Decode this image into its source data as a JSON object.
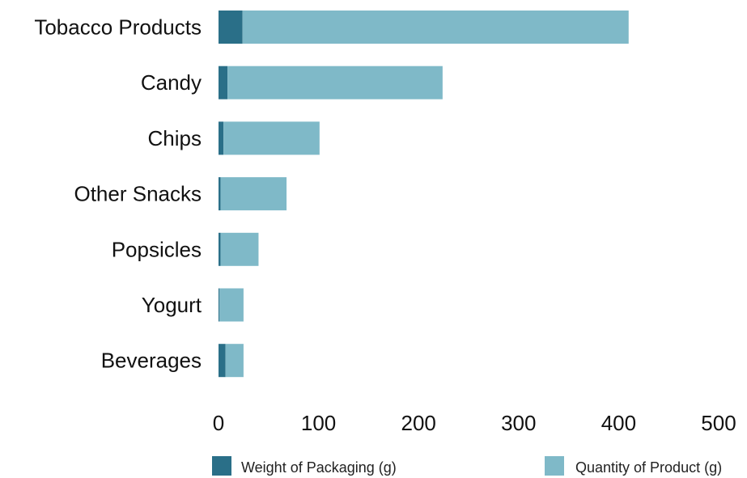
{
  "chart_data": {
    "type": "bar",
    "orientation": "horizontal",
    "stacked": true,
    "categories": [
      "Tobacco Products",
      "Candy",
      "Chips",
      "Other Snacks",
      "Popsicles",
      "Yogurt",
      "Beverages"
    ],
    "series": [
      {
        "name": "Weight of Packaging (g)",
        "color": "#2a6f88",
        "values": [
          24,
          9,
          5,
          2,
          2,
          1,
          7
        ]
      },
      {
        "name": "Quantity of Product (g)",
        "color": "#7fb9c8",
        "values": [
          386,
          215,
          96,
          66,
          38,
          24,
          18
        ]
      }
    ],
    "xticks": [
      "0",
      "100",
      "200",
      "300",
      "400",
      "500"
    ],
    "xlim": [
      0,
      500
    ],
    "title": "",
    "xlabel": "",
    "ylabel": "",
    "grid": false,
    "legend_position": "bottom"
  }
}
